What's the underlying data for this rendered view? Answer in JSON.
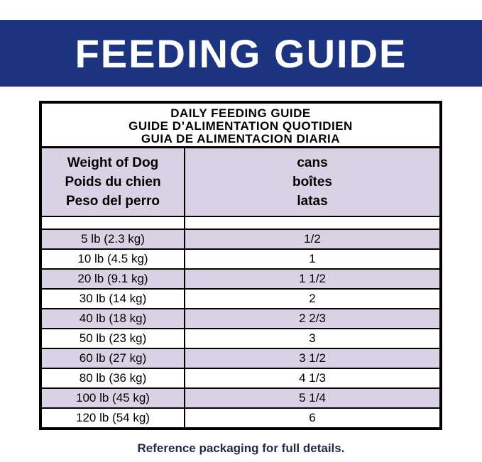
{
  "banner": {
    "title": "FEEDING GUIDE",
    "bg_color": "#1d3480",
    "text_color": "#ffffff"
  },
  "table": {
    "title_lines": [
      "DAILY FEEDING GUIDE",
      "GUIDE D’ALIMENTATION QUOTIDIEN",
      "GUIA DE ALIMENTACION DIARIA"
    ],
    "col_headers": {
      "weight_lines": [
        "Weight of Dog",
        "Poids du chien",
        "Peso del perro"
      ],
      "cans_lines": [
        "cans",
        "boîtes",
        "latas"
      ]
    },
    "stripe_color": "#d9d2e4",
    "rows": [
      {
        "weight": "5 lb (2.3 kg)",
        "cans": "1/2"
      },
      {
        "weight": "10 lb (4.5 kg)",
        "cans": "1"
      },
      {
        "weight": "20 lb (9.1 kg)",
        "cans": "1 1/2"
      },
      {
        "weight": "30 lb (14 kg)",
        "cans": "2"
      },
      {
        "weight": "40 lb (18 kg)",
        "cans": "2 2/3"
      },
      {
        "weight": "50 lb (23 kg)",
        "cans": "3"
      },
      {
        "weight": "60 lb (27 kg)",
        "cans": "3 1/2"
      },
      {
        "weight": "80 lb (36 kg)",
        "cans": "4 1/3"
      },
      {
        "weight": "100 lb (45 kg)",
        "cans": "5 1/4"
      },
      {
        "weight": "120 lb (54 kg)",
        "cans": "6"
      }
    ]
  },
  "footer": {
    "note": "Reference packaging for full details."
  }
}
